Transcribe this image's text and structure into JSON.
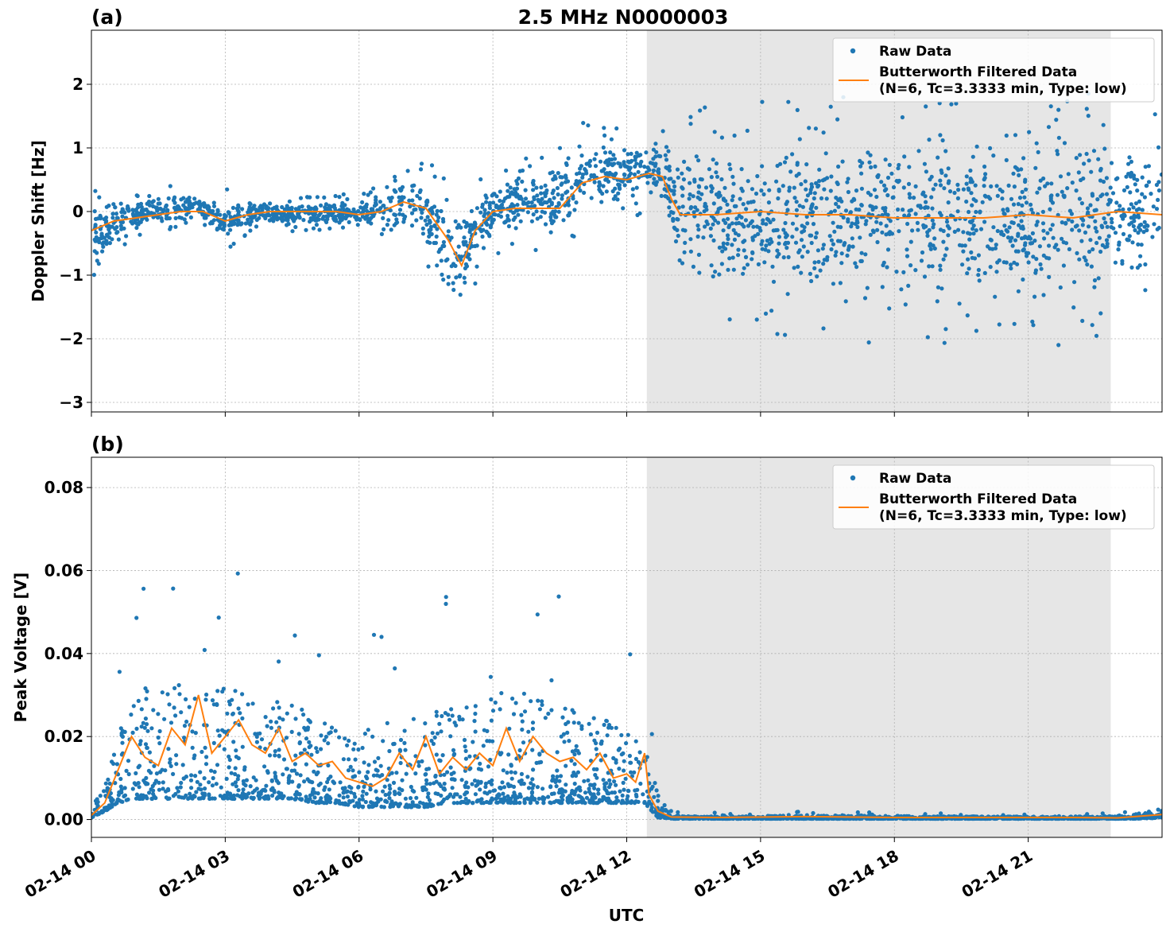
{
  "figure": {
    "title": "2.5 MHz N0000003",
    "xlabel": "UTC"
  },
  "colors": {
    "raw": "#1f77b4",
    "filtered": "#ff7f0e",
    "shade": "#e6e6e6"
  },
  "chart_data": [
    {
      "type": "scatter",
      "panel_label": "(a)",
      "ylabel": "Doppler Shift [Hz]",
      "ylim": [
        -3.15,
        2.85
      ],
      "yticks": [
        2,
        1,
        0,
        -1,
        -2,
        -3
      ],
      "ytick_labels": [
        "2",
        "1",
        "0",
        "−1",
        "−2",
        "−3"
      ],
      "xlim_hours": [
        0,
        24
      ],
      "xticks_hours": [
        0,
        3,
        6,
        9,
        12,
        15,
        18,
        21
      ],
      "xtick_labels": [
        "02-14 00",
        "02-14 03",
        "02-14 06",
        "02-14 09",
        "02-14 12",
        "02-14 15",
        "02-14 18",
        "02-14 21"
      ],
      "shaded_span_hours": [
        12.45,
        22.85
      ],
      "grid": true,
      "legend_position": "top-right",
      "legend": [
        "Raw Data",
        "Butterworth Filtered Data",
        "(N=6, Tc=3.3333 min, Type: low)"
      ],
      "series": [
        {
          "name": "Raw Data",
          "band_x_hours": [
            0,
            0.5,
            1,
            1.5,
            2,
            2.5,
            3,
            3.5,
            4,
            4.5,
            5,
            5.5,
            6,
            6.5,
            7,
            7.5,
            8,
            8.3,
            8.6,
            9,
            9.5,
            10,
            10.5,
            11,
            11.5,
            12,
            12.5,
            12.8,
            13,
            13.2,
            14,
            15,
            16,
            17,
            18,
            19,
            20,
            21,
            22,
            23,
            24
          ],
          "band_low": [
            -0.95,
            -0.45,
            -0.3,
            -0.2,
            -0.15,
            -0.15,
            -0.45,
            -0.25,
            -0.2,
            -0.2,
            -0.2,
            -0.2,
            -0.25,
            -0.25,
            -0.3,
            -0.5,
            -1.3,
            -1.5,
            -0.8,
            -0.4,
            -0.3,
            -0.3,
            -0.4,
            0.0,
            0.1,
            0.2,
            0.25,
            0.2,
            -0.5,
            -1.0,
            -1.1,
            -1.2,
            -1.3,
            -1.3,
            -1.3,
            -1.3,
            -1.3,
            -1.3,
            -1.3,
            -1.2,
            -1.0
          ],
          "band_high": [
            0.1,
            0.15,
            0.15,
            0.2,
            0.3,
            0.2,
            0.15,
            0.15,
            0.15,
            0.15,
            0.15,
            0.15,
            0.15,
            0.25,
            0.6,
            0.45,
            0.1,
            0.0,
            0.2,
            0.45,
            0.55,
            0.6,
            0.8,
            1.15,
            1.1,
            1.0,
            1.1,
            1.15,
            1.0,
            0.9,
            1.0,
            1.0,
            1.05,
            1.05,
            1.1,
            1.1,
            1.15,
            1.15,
            1.15,
            1.1,
            0.9
          ]
        },
        {
          "name": "Butterworth Filtered Data",
          "x_hours": [
            0,
            0.5,
            1,
            1.5,
            2,
            2.5,
            3,
            3.5,
            4,
            4.5,
            5,
            5.5,
            6,
            6.5,
            7,
            7.5,
            8,
            8.3,
            8.6,
            9,
            9.5,
            10,
            10.5,
            11,
            11.5,
            12,
            12.5,
            12.8,
            13,
            13.2,
            14,
            15,
            16,
            17,
            18,
            19,
            20,
            21,
            22,
            23,
            24
          ],
          "y": [
            -0.3,
            -0.15,
            -0.1,
            -0.05,
            0.0,
            0.0,
            -0.15,
            -0.05,
            0.0,
            0.0,
            0.0,
            0.0,
            -0.05,
            0.0,
            0.15,
            0.05,
            -0.45,
            -0.85,
            -0.3,
            0.0,
            0.05,
            0.05,
            0.05,
            0.45,
            0.55,
            0.5,
            0.6,
            0.55,
            0.2,
            -0.05,
            -0.05,
            0.0,
            -0.05,
            -0.05,
            -0.1,
            -0.1,
            -0.1,
            -0.05,
            -0.1,
            0.0,
            -0.05
          ]
        }
      ]
    },
    {
      "type": "scatter",
      "panel_label": "(b)",
      "ylabel": "Peak Voltage [V]",
      "ylim": [
        -0.0043,
        0.0873
      ],
      "yticks": [
        0.08,
        0.06,
        0.04,
        0.02,
        0.0
      ],
      "ytick_labels": [
        "0.08",
        "0.06",
        "0.04",
        "0.02",
        "0.00"
      ],
      "xlim_hours": [
        0,
        24
      ],
      "xticks_hours": [
        0,
        3,
        6,
        9,
        12,
        15,
        18,
        21
      ],
      "xtick_labels": [
        "02-14 00",
        "02-14 03",
        "02-14 06",
        "02-14 09",
        "02-14 12",
        "02-14 15",
        "02-14 18",
        "02-14 21"
      ],
      "shaded_span_hours": [
        12.45,
        22.85
      ],
      "grid": true,
      "legend_position": "top-right",
      "legend": [
        "Raw Data",
        "Butterworth Filtered Data",
        "(N=6, Tc=3.3333 min, Type: low)"
      ],
      "series": [
        {
          "name": "Raw Data",
          "band_x_hours": [
            0,
            0.3,
            0.6,
            1,
            1.5,
            2,
            2.5,
            3,
            3.5,
            4,
            4.5,
            5,
            5.5,
            6,
            6.5,
            7,
            7.5,
            8,
            8.5,
            9,
            9.5,
            10,
            10.5,
            11,
            11.5,
            12,
            12.4,
            12.7,
            13,
            13.5,
            15,
            17,
            19,
            21,
            22.85,
            23.3,
            23.7,
            24
          ],
          "band_low": [
            0.0005,
            0.002,
            0.004,
            0.005,
            0.005,
            0.005,
            0.005,
            0.005,
            0.005,
            0.005,
            0.005,
            0.004,
            0.004,
            0.003,
            0.003,
            0.003,
            0.003,
            0.004,
            0.004,
            0.004,
            0.004,
            0.004,
            0.004,
            0.004,
            0.004,
            0.004,
            0.004,
            0.0005,
            0.0002,
            0.0002,
            0.0002,
            0.0002,
            0.0002,
            0.0002,
            0.0002,
            0.0002,
            0.0003,
            0.0005
          ],
          "band_high": [
            0.003,
            0.008,
            0.02,
            0.03,
            0.032,
            0.033,
            0.034,
            0.033,
            0.03,
            0.03,
            0.028,
            0.025,
            0.022,
            0.02,
            0.024,
            0.025,
            0.026,
            0.027,
            0.028,
            0.03,
            0.032,
            0.03,
            0.028,
            0.026,
            0.024,
            0.022,
            0.02,
            0.006,
            0.001,
            0.0008,
            0.0009,
            0.001,
            0.0008,
            0.0007,
            0.0008,
            0.001,
            0.002,
            0.003
          ]
        },
        {
          "name": "Butterworth Filtered Data",
          "x_hours": [
            0,
            0.3,
            0.6,
            0.9,
            1.2,
            1.5,
            1.8,
            2.1,
            2.4,
            2.7,
            3,
            3.3,
            3.6,
            3.9,
            4.2,
            4.5,
            4.8,
            5.1,
            5.4,
            5.7,
            6,
            6.3,
            6.6,
            6.9,
            7.2,
            7.5,
            7.8,
            8.1,
            8.4,
            8.7,
            9,
            9.3,
            9.6,
            9.9,
            10.2,
            10.5,
            10.8,
            11.1,
            11.4,
            11.7,
            12,
            12.2,
            12.4,
            12.5,
            12.7,
            13,
            14,
            16,
            18,
            20,
            22,
            23,
            23.5,
            24
          ],
          "y": [
            0.001,
            0.004,
            0.012,
            0.02,
            0.015,
            0.013,
            0.022,
            0.018,
            0.03,
            0.016,
            0.02,
            0.024,
            0.018,
            0.016,
            0.022,
            0.014,
            0.016,
            0.013,
            0.014,
            0.01,
            0.009,
            0.008,
            0.01,
            0.016,
            0.012,
            0.02,
            0.011,
            0.015,
            0.012,
            0.016,
            0.013,
            0.022,
            0.014,
            0.02,
            0.016,
            0.014,
            0.015,
            0.012,
            0.016,
            0.01,
            0.011,
            0.009,
            0.016,
            0.006,
            0.002,
            0.0006,
            0.0005,
            0.0007,
            0.0005,
            0.0005,
            0.0005,
            0.0004,
            0.0008,
            0.0012
          ]
        }
      ]
    }
  ]
}
